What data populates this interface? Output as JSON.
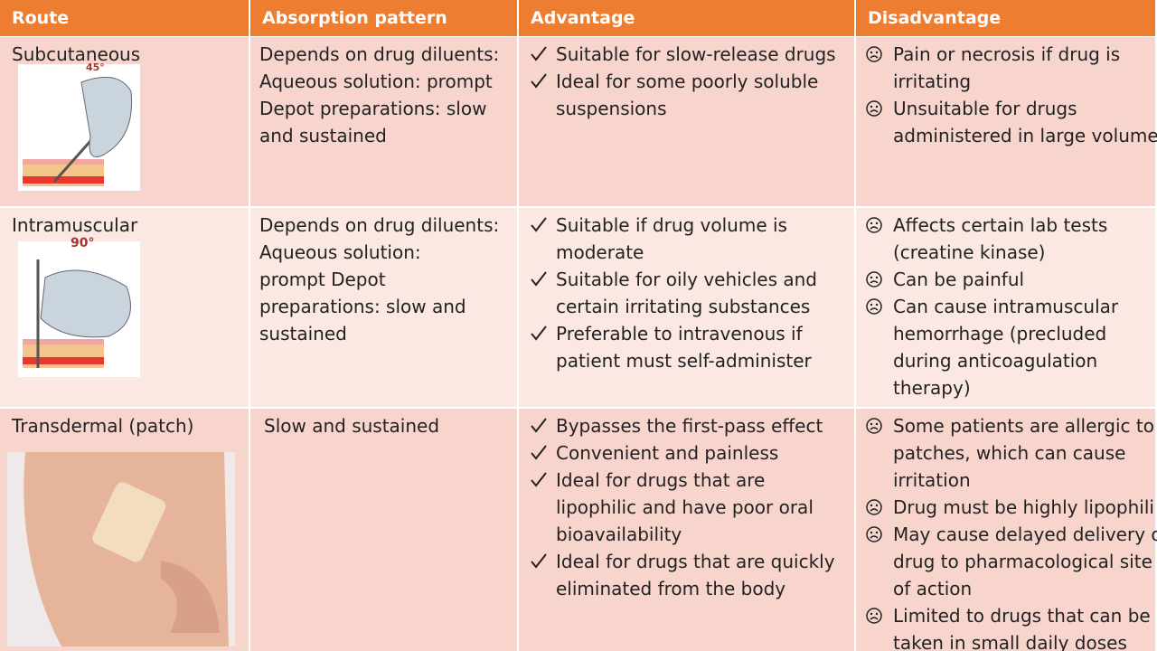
{
  "header": [
    "Route",
    "Absorption pattern",
    "Advantage",
    "Disadvantage"
  ],
  "rows": [
    {
      "route": "Subcutaneous",
      "angle_label": "45°",
      "absorption": [
        "Depends on drug diluents:",
        "Aqueous solution: prompt",
        "Depot preparations: slow",
        "and sustained"
      ],
      "advantage": [
        [
          "Suitable for slow-release drugs"
        ],
        [
          "Ideal for some poorly soluble",
          "suspensions"
        ]
      ],
      "disadvantage": [
        [
          "Pain or necrosis if drug is",
          "irritating"
        ],
        [
          "Unsuitable for drugs",
          "administered in large volume"
        ]
      ]
    },
    {
      "route": "Intramuscular",
      "angle_label": "90°",
      "absorption": [
        "Depends on drug diluents:",
        "Aqueous solution:",
        "prompt Depot",
        "preparations:   slow and",
        "sustained"
      ],
      "advantage": [
        [
          "Suitable if drug volume is",
          "moderate"
        ],
        [
          "Suitable for oily vehicles and",
          "certain irritating substances"
        ],
        [
          "Preferable to intravenous if",
          "patient must self-administer"
        ]
      ],
      "disadvantage": [
        [
          "Affects certain lab tests",
          "(creatine  kinase)"
        ],
        [
          "Can be painful"
        ],
        [
          "Can cause intramuscular",
          "hemorrhage (precluded",
          "during  anticoagulation",
          "therapy)"
        ]
      ]
    },
    {
      "route": "Transdermal (patch)",
      "absorption": [
        "Slow and sustained"
      ],
      "advantage": [
        [
          "Bypasses the first-pass effect"
        ],
        [
          "Convenient and painless"
        ],
        [
          "Ideal for drugs that are",
          "lipophilic  and have poor oral",
          "bioavailability"
        ],
        [
          "Ideal for drugs that are quickly",
          "eliminated from the body"
        ]
      ],
      "disadvantage": [
        [
          "Some patients are allergic to",
          "patches, which can cause",
          "irritation"
        ],
        [
          "Drug must be highly lipophili"
        ],
        [
          "May cause delayed delivery o",
          "drug  to pharmacological site",
          "of action"
        ],
        [
          "Limited to drugs that can be",
          "taken in small daily doses"
        ]
      ]
    }
  ]
}
